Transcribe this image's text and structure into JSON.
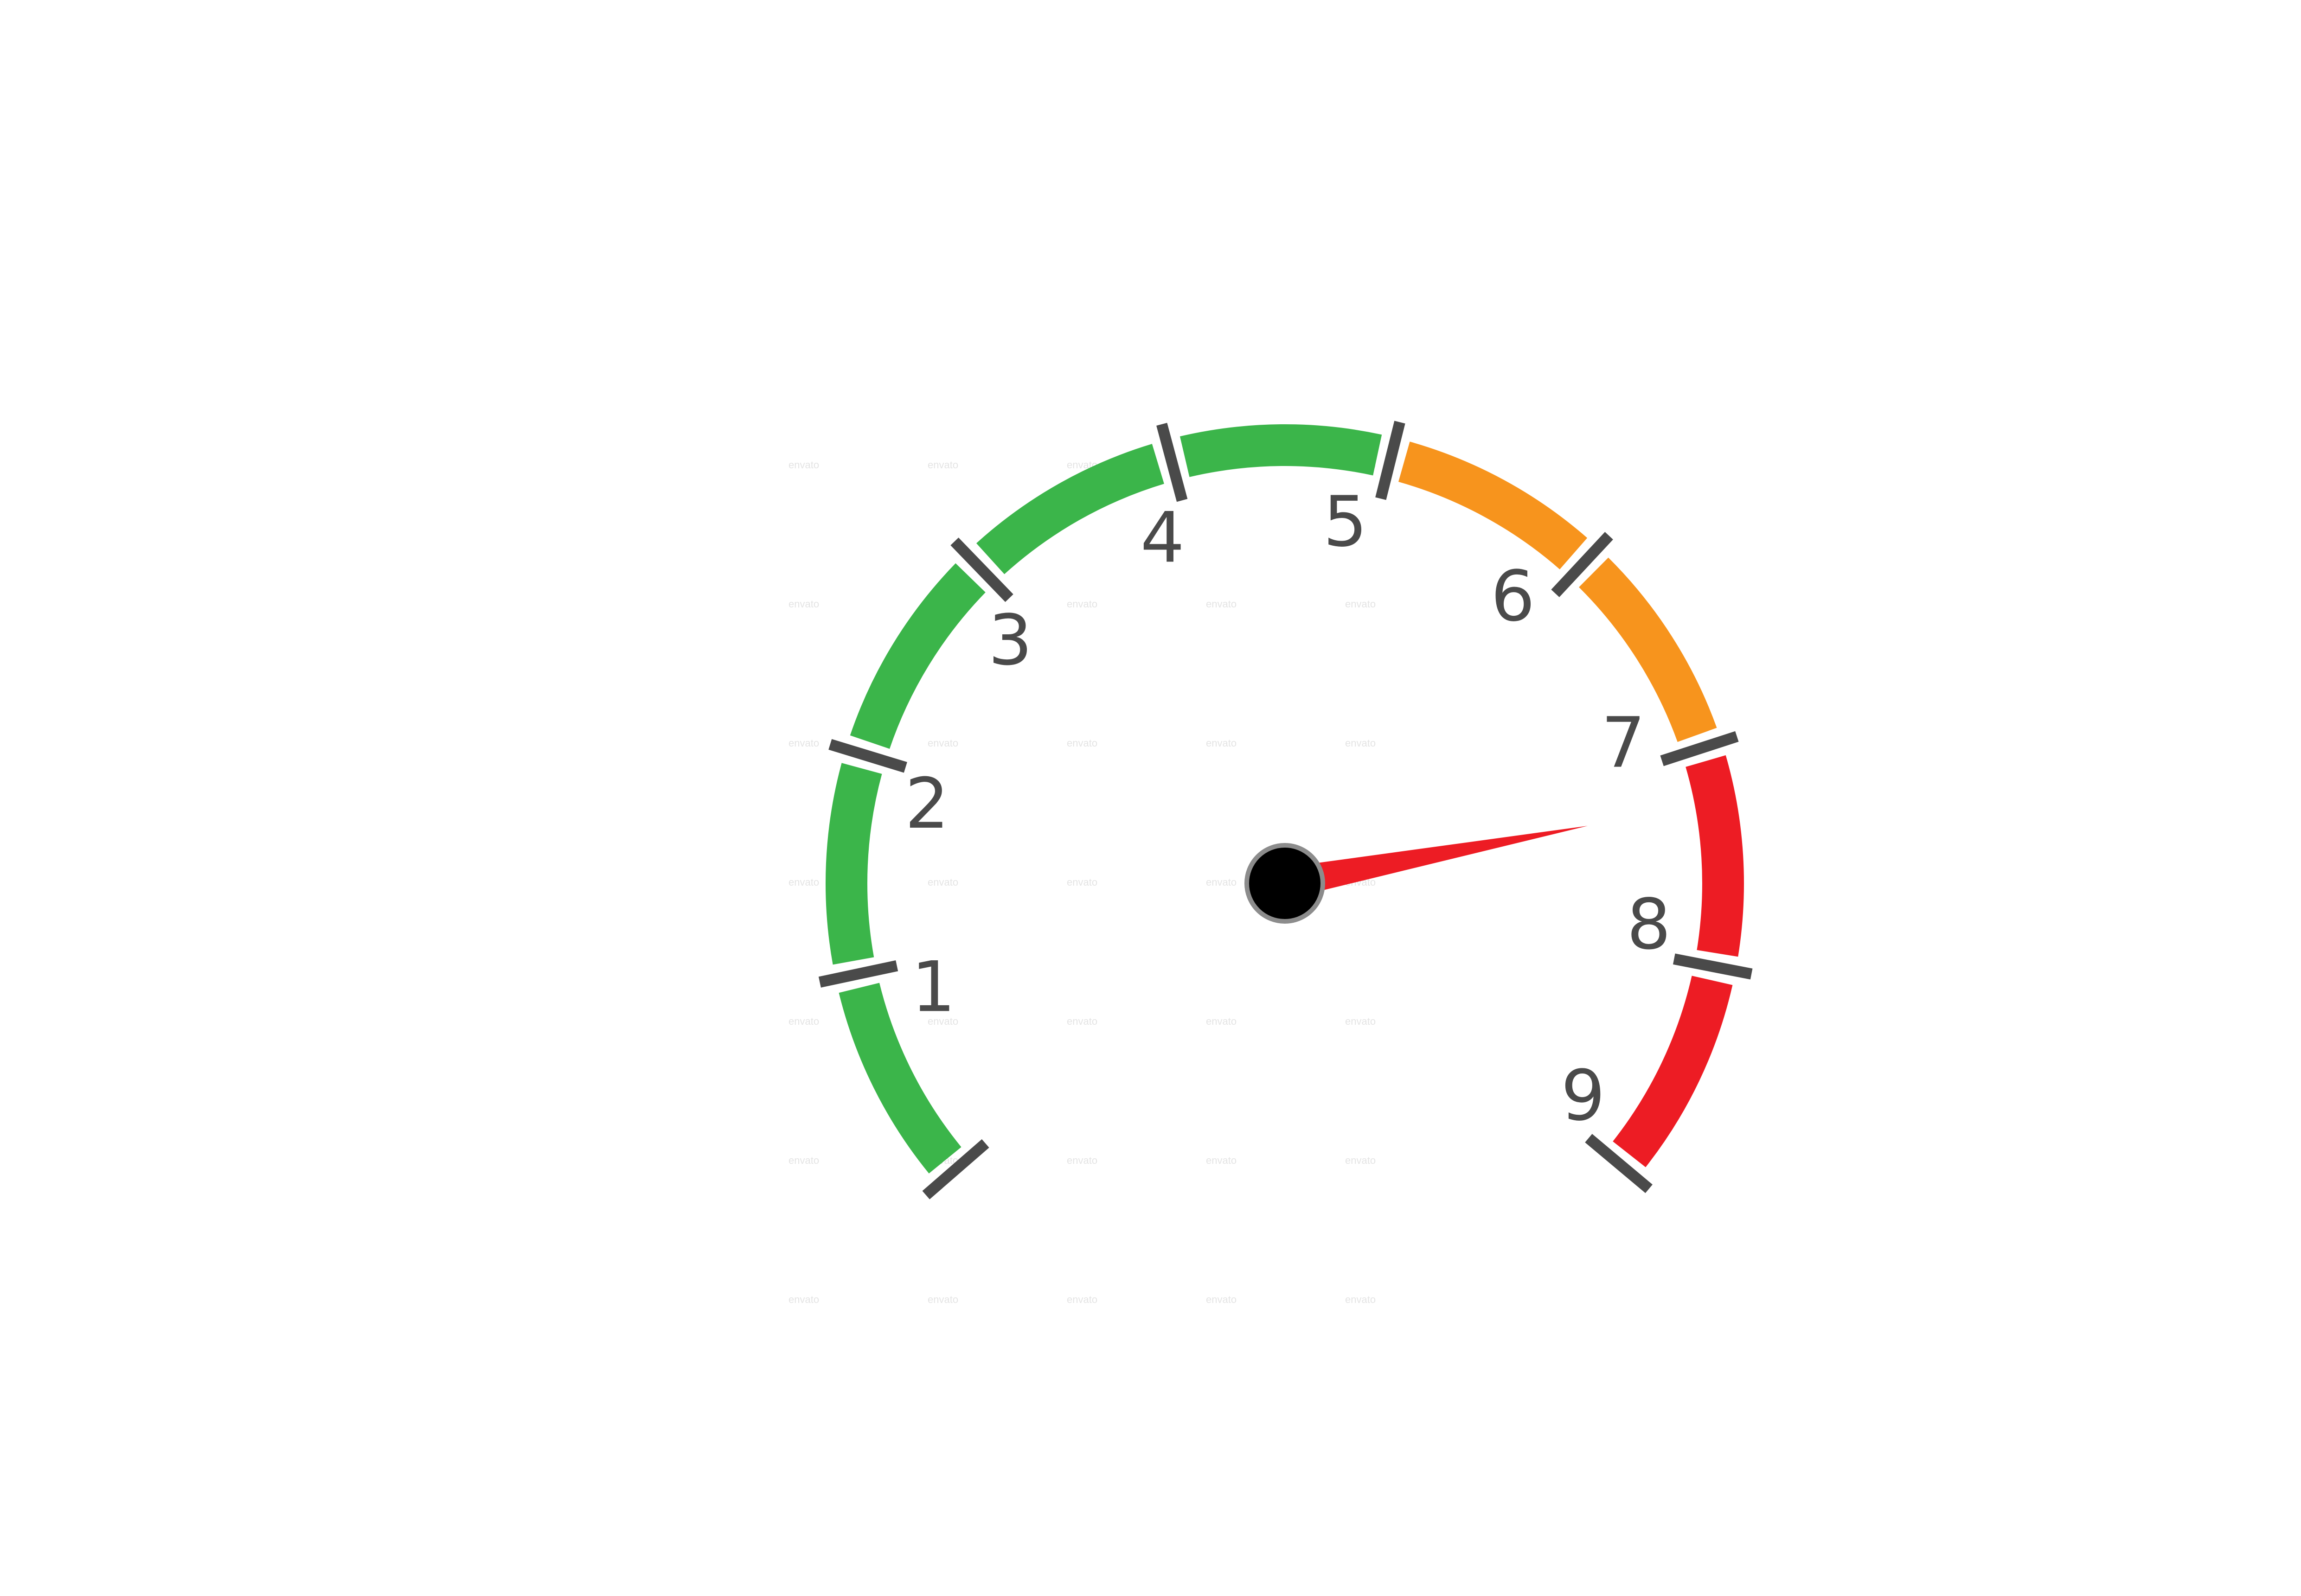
{
  "gauge": {
    "min": 0,
    "max": 9,
    "value": 7.25,
    "tick_labels": [
      "1",
      "2",
      "3",
      "4",
      "5",
      "6",
      "7",
      "8",
      "9"
    ],
    "zones": [
      {
        "name": "green",
        "from": 0,
        "to": 5,
        "color": "#3bb54a"
      },
      {
        "name": "orange",
        "from": 5,
        "to": 7,
        "color": "#f7941d"
      },
      {
        "name": "red",
        "from": 7,
        "to": 9,
        "color": "#ed1c24"
      }
    ],
    "tick_color": "#4a4a4a",
    "needle_color": "#ed1c24",
    "hub_color": "#000000",
    "hub_border_color": "#8c8c8c",
    "watermark_text": "envato"
  }
}
